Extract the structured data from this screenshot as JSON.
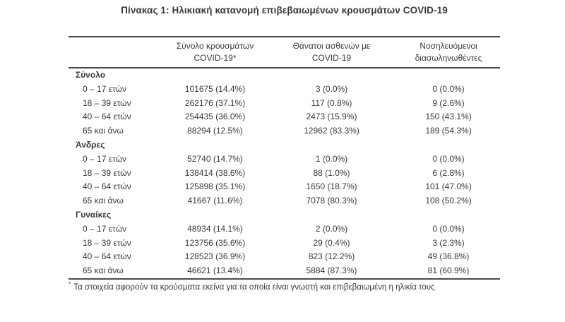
{
  "title": "Πίνακας 1: Ηλικιακή κατανομή επιβεβαιωμένων κρουσμάτων COVID-19",
  "table": {
    "columns": [
      {
        "line1": "Σύνολο κρουσμάτων",
        "line2": "COVID-19*"
      },
      {
        "line1": "Θάνατοι ασθενών με",
        "line2": "COVID-19"
      },
      {
        "line1": "Νοσηλευόμενοι",
        "line2": "διασωληνωθέντες"
      }
    ],
    "sections": [
      {
        "label": "Σύνολο",
        "rows": [
          {
            "age": "0 – 17 ετών",
            "cases": "101675 (14.4%)",
            "deaths": "3 (0.0%)",
            "intubated": "0 (0.0%)"
          },
          {
            "age": "18 – 39 ετών",
            "cases": "262176 (37.1%)",
            "deaths": "117 (0.8%)",
            "intubated": "9 (2.6%)"
          },
          {
            "age": "40 – 64 ετών",
            "cases": "254435 (36.0%)",
            "deaths": "2473 (15.9%)",
            "intubated": "150 (43.1%)"
          },
          {
            "age": "65 και άνω",
            "cases": "88294 (12.5%)",
            "deaths": "12962 (83.3%)",
            "intubated": "189 (54.3%)"
          }
        ]
      },
      {
        "label": "Άνδρες",
        "rows": [
          {
            "age": "0 – 17 ετών",
            "cases": "52740 (14.7%)",
            "deaths": "1 (0.0%)",
            "intubated": "0 (0.0%)"
          },
          {
            "age": "18 – 39 ετών",
            "cases": "138414 (38.6%)",
            "deaths": "88 (1.0%)",
            "intubated": "6 (2.8%)"
          },
          {
            "age": "40 – 64 ετών",
            "cases": "125898 (35.1%)",
            "deaths": "1650 (18.7%)",
            "intubated": "101 (47.0%)"
          },
          {
            "age": "65 και άνω",
            "cases": "41667 (11.6%)",
            "deaths": "7078 (80.3%)",
            "intubated": "108 (50.2%)"
          }
        ]
      },
      {
        "label": "Γυναίκες",
        "rows": [
          {
            "age": "0 – 17 ετών",
            "cases": "48934 (14.1%)",
            "deaths": "2 (0.0%)",
            "intubated": "0 (0.0%)"
          },
          {
            "age": "18 – 39 ετών",
            "cases": "123756 (35.6%)",
            "deaths": "29 (0.4%)",
            "intubated": "3 (2.3%)"
          },
          {
            "age": "40 – 64 ετών",
            "cases": "128523 (36.9%)",
            "deaths": "823 (12.2%)",
            "intubated": "49 (36.8%)"
          },
          {
            "age": "65 και άνω",
            "cases": "46621 (13.4%)",
            "deaths": "5884 (87.3%)",
            "intubated": "81 (60.9%)"
          }
        ]
      }
    ]
  },
  "footnote": {
    "marker": "*",
    "text": "Τα στοιχεία αφορούν τα κρούσματα εκείνα για τα οποία είναι γνωστή και επιβεβαιωμένη η ηλικία τους"
  },
  "colors": {
    "text": "#3a3a3a",
    "rule": "#4a4a4a",
    "background": "#ffffff"
  }
}
